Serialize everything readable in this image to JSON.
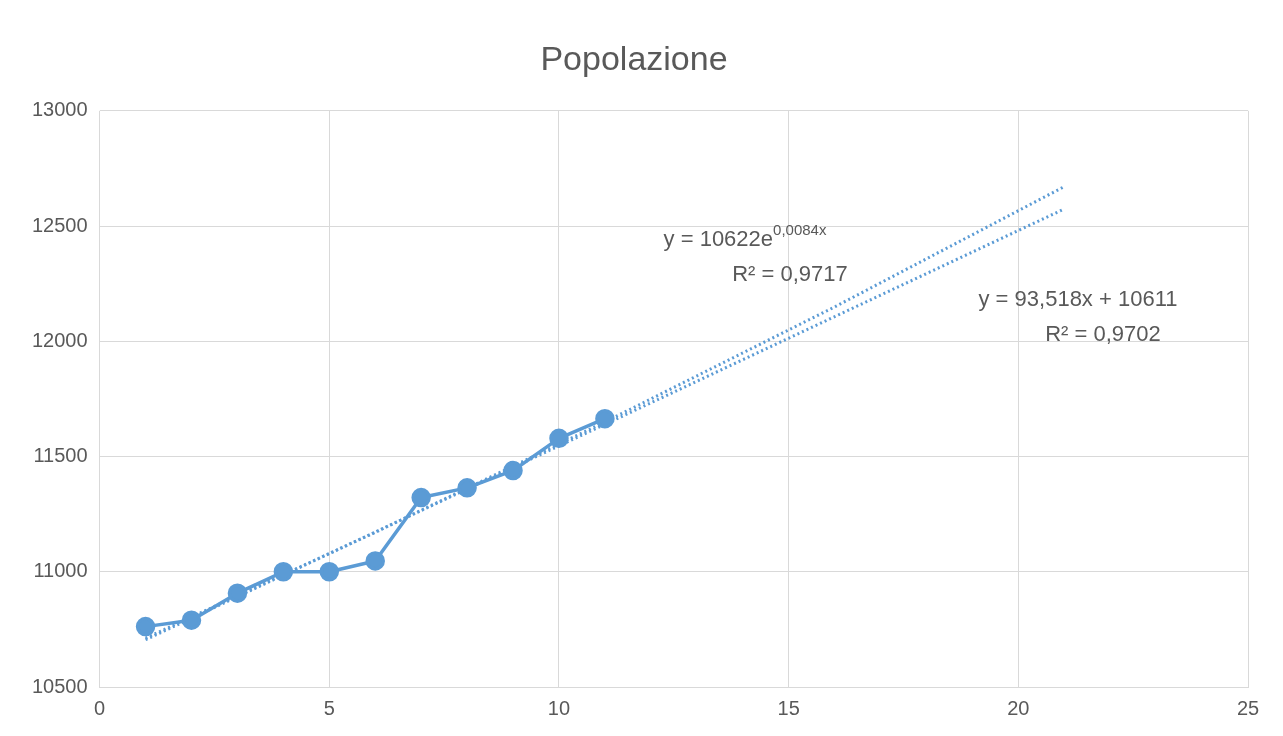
{
  "chart_data": {
    "type": "line",
    "title": "Popolazione",
    "xlim": [
      0,
      25
    ],
    "xticks": [
      0,
      5,
      10,
      15,
      20,
      25
    ],
    "ylim": [
      10500,
      13000
    ],
    "yticks": [
      10500,
      11000,
      11500,
      12000,
      12500,
      13000
    ],
    "grid": true,
    "marker": "circle",
    "line_style": "solid",
    "series": [
      {
        "color": "#5b9bd5",
        "x": [
          1,
          2,
          3,
          4,
          5,
          6,
          7,
          8,
          9,
          10,
          11
        ],
        "values": [
          10762,
          10790,
          10907,
          11000,
          11000,
          11047,
          11322,
          11364,
          11439,
          11579,
          11664
        ]
      },
      {
        "type": "line",
        "color": "#5b9bd5",
        "marker": "none",
        "line_style": "dotted",
        "x": [
          1,
          6,
          11,
          16,
          21
        ],
        "values": [
          10712,
          11171,
          11650,
          12149,
          12671
        ]
      },
      {
        "type": "line",
        "color": "#5b9bd5",
        "marker": "none",
        "line_style": "dotted",
        "x": [
          1,
          21
        ],
        "values": [
          10705,
          12574
        ]
      }
    ],
    "annotations": [
      "y = 10622e$^{0,0084x}$",
      "R² = 0,9717",
      "y = 93,518x + 10611",
      "R² = 0,9702"
    ]
  }
}
